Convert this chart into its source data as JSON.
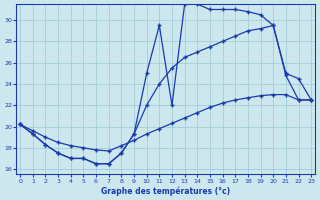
{
  "bg_color": "#cce8ee",
  "grid_color": "#99c8d4",
  "line_color": "#1a3aad",
  "xlim": [
    -0.3,
    23.3
  ],
  "ylim": [
    15.5,
    31.5
  ],
  "yticks": [
    16,
    18,
    20,
    22,
    24,
    26,
    28,
    30
  ],
  "xticks": [
    0,
    1,
    2,
    3,
    4,
    5,
    6,
    7,
    8,
    9,
    10,
    11,
    12,
    13,
    14,
    15,
    16,
    17,
    18,
    19,
    20,
    21,
    22,
    23
  ],
  "xlabel": "Graphe des températures (°c)",
  "line_diagonal_x": [
    0,
    1,
    2,
    3,
    4,
    5,
    6,
    7,
    8,
    9,
    10,
    11,
    12,
    13,
    14,
    15,
    16,
    17,
    18,
    19,
    20,
    21,
    22,
    23
  ],
  "line_diagonal_y": [
    20.2,
    19.6,
    19.0,
    18.5,
    18.2,
    18.0,
    17.8,
    17.7,
    18.2,
    18.7,
    19.3,
    19.8,
    20.3,
    20.8,
    21.3,
    21.8,
    22.2,
    22.5,
    22.7,
    22.9,
    23.0,
    23.0,
    22.5,
    22.5
  ],
  "line_smooth_x": [
    0,
    1,
    2,
    3,
    4,
    5,
    6,
    7,
    8,
    9,
    10,
    11,
    12,
    13,
    14,
    15,
    16,
    17,
    18,
    19,
    20,
    21,
    22,
    23
  ],
  "line_smooth_y": [
    20.2,
    19.3,
    18.3,
    17.5,
    17.0,
    17.0,
    16.5,
    16.5,
    17.5,
    19.3,
    22.0,
    24.0,
    25.5,
    26.5,
    27.0,
    27.5,
    28.0,
    28.5,
    29.0,
    29.2,
    29.5,
    25.0,
    24.5,
    22.5
  ],
  "line_peak_x": [
    0,
    1,
    2,
    3,
    4,
    5,
    6,
    7,
    8,
    9,
    10,
    11,
    12,
    13,
    14,
    15,
    16,
    17,
    18,
    19,
    20,
    21,
    22,
    23
  ],
  "line_peak_y": [
    20.2,
    19.3,
    18.3,
    17.5,
    17.0,
    17.0,
    16.5,
    16.5,
    17.5,
    19.3,
    25.0,
    29.5,
    22.0,
    31.5,
    31.5,
    31.0,
    31.0,
    31.0,
    30.8,
    30.5,
    29.5,
    24.8,
    22.5,
    22.5
  ]
}
